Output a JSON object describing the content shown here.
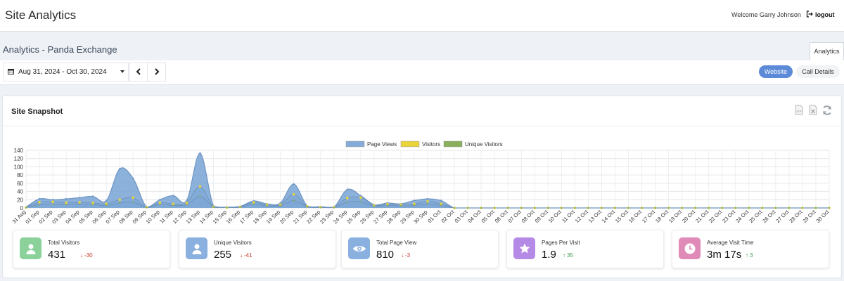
{
  "header": {
    "app_title": "Site Analytics",
    "welcome": "Welcome Garry Johnson",
    "logout": "logout"
  },
  "subheader": {
    "page_title": "Analytics - Panda Exchange",
    "tab": "Analytics"
  },
  "controls": {
    "date_range": "Aug 31, 2024 - Oct 30, 2024",
    "toggle_website": "Website",
    "toggle_call_details": "Call Details"
  },
  "snapshot": {
    "title": "Site Snapshot",
    "icons": [
      "pdf-export-icon",
      "excel-export-icon",
      "refresh-icon"
    ]
  },
  "colors": {
    "page_views": "#85acd8",
    "visitors": "#e9d43b",
    "unique_visitors": "#8aae5c",
    "accent": "#5b8ad8"
  },
  "chart_data": {
    "type": "area",
    "legend_position": "top",
    "grid": true,
    "ylim": [
      0,
      140
    ],
    "y_ticks": [
      "0",
      "20",
      "40",
      "60",
      "80",
      "100",
      "120",
      "140"
    ],
    "categories": [
      "31 Aug",
      "01 Sep",
      "02 Sep",
      "03 Sep",
      "04 Sep",
      "05 Sep",
      "06 Sep",
      "07 Sep",
      "08 Sep",
      "09 Sep",
      "10 Sep",
      "11 Sep",
      "12 Sep",
      "13 Sep",
      "14 Sep",
      "15 Sep",
      "16 Sep",
      "17 Sep",
      "18 Sep",
      "19 Sep",
      "20 Sep",
      "21 Sep",
      "22 Sep",
      "23 Sep",
      "24 Sep",
      "25 Sep",
      "26 Sep",
      "27 Sep",
      "28 Sep",
      "29 Sep",
      "30 Sep",
      "01 Oct",
      "02 Oct",
      "03 Oct",
      "04 Oct",
      "05 Oct",
      "06 Oct",
      "07 Oct",
      "08 Oct",
      "09 Oct",
      "10 Oct",
      "11 Oct",
      "12 Oct",
      "13 Oct",
      "14 Oct",
      "15 Oct",
      "16 Oct",
      "17 Oct",
      "18 Oct",
      "19 Oct",
      "20 Oct",
      "21 Oct",
      "22 Oct",
      "23 Oct",
      "24 Oct",
      "25 Oct",
      "26 Oct",
      "27 Oct",
      "28 Oct",
      "29 Oct",
      "30 Oct"
    ],
    "series": [
      {
        "name": "Page Views",
        "values": [
          2,
          22,
          20,
          22,
          25,
          28,
          18,
          95,
          72,
          3,
          20,
          30,
          18,
          133,
          5,
          2,
          4,
          17,
          10,
          12,
          58,
          5,
          3,
          2,
          45,
          30,
          8,
          12,
          10,
          18,
          22,
          18,
          0,
          0,
          0,
          0,
          0,
          0,
          0,
          0,
          0,
          0,
          0,
          0,
          0,
          0,
          0,
          0,
          0,
          0,
          0,
          0,
          0,
          0,
          0,
          0,
          0,
          0,
          0,
          0,
          0
        ]
      },
      {
        "name": "Visitors",
        "values": [
          1,
          14,
          15,
          13,
          14,
          12,
          10,
          20,
          25,
          2,
          13,
          10,
          12,
          52,
          3,
          1,
          3,
          14,
          8,
          8,
          33,
          4,
          2,
          2,
          24,
          25,
          6,
          9,
          8,
          10,
          16,
          10,
          0,
          0,
          0,
          0,
          0,
          0,
          0,
          0,
          0,
          0,
          0,
          0,
          0,
          0,
          0,
          0,
          0,
          0,
          0,
          0,
          0,
          0,
          0,
          0,
          0,
          0,
          0,
          0,
          0
        ]
      },
      {
        "name": "Unique Visitors",
        "values": [
          1,
          8,
          9,
          8,
          9,
          8,
          6,
          12,
          14,
          1,
          8,
          6,
          8,
          28,
          2,
          1,
          2,
          9,
          5,
          5,
          18,
          3,
          1,
          1,
          14,
          15,
          4,
          6,
          5,
          6,
          10,
          6,
          0,
          0,
          0,
          0,
          0,
          0,
          0,
          0,
          0,
          0,
          0,
          0,
          0,
          0,
          0,
          0,
          0,
          0,
          0,
          0,
          0,
          0,
          0,
          0,
          0,
          0,
          0,
          0,
          0
        ]
      }
    ]
  },
  "cards": [
    {
      "label": "Total Visitors",
      "value": "431",
      "delta": "-30",
      "dir": "down",
      "color": "#8ad19a",
      "icon": "user-icon"
    },
    {
      "label": "Unique Visitors",
      "value": "255",
      "delta": "-41",
      "dir": "down",
      "color": "#8ab0e0",
      "icon": "user-icon"
    },
    {
      "label": "Total Page View",
      "value": "810",
      "delta": "-3",
      "dir": "down",
      "color": "#8ab0e0",
      "icon": "eye-icon"
    },
    {
      "label": "Pages Per Visit",
      "value": "1.9",
      "delta": "35",
      "dir": "up",
      "color": "#b48ae6",
      "icon": "star-icon"
    },
    {
      "label": "Average Visit Time",
      "value": "3m 17s",
      "delta": "3",
      "dir": "up",
      "color": "#e08ab8",
      "icon": "clock-icon"
    }
  ]
}
